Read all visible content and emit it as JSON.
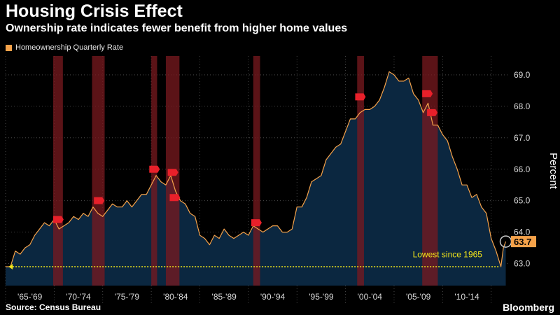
{
  "header": {
    "title": "Housing Crisis Effect",
    "subtitle": "Ownership rate indicates fewer benefit from higher home values"
  },
  "footer": {
    "source": "Source: Census Bureau",
    "brand": "Bloomberg"
  },
  "colors": {
    "line": "#f5a24a",
    "area": "#0b2740",
    "recession": "#7a1a1f",
    "recession_marker": "#e8202a",
    "annotation": "#f2e51a",
    "last_value_bg": "#f5a24a",
    "axis_text": "#d9d9d9"
  },
  "chart_data": {
    "type": "area",
    "title": "Housing Crisis Effect",
    "subtitle": "Ownership rate indicates fewer benefit from higher home values",
    "ylabel": "Percent",
    "xlabel": "",
    "ylim": [
      62.3,
      69.6
    ],
    "xlim": [
      1965.0,
      2016.75
    ],
    "y_ticks": [
      63.0,
      64.0,
      65.0,
      66.0,
      67.0,
      68.0,
      69.0
    ],
    "y_tick_labels": [
      "63.0",
      "64.0",
      "65.0",
      "66.0",
      "67.0",
      "68.0",
      "69.0"
    ],
    "x_tick_labels": [
      "'65-'69",
      "'70-'74",
      "'75-'79",
      "'80-'84",
      "'85-'89",
      "'90-'94",
      "'95-'99",
      "'00-'04",
      "'05-'09",
      "'10-'14"
    ],
    "x_tick_label_years": [
      1967.5,
      1972.5,
      1977.5,
      1982.5,
      1987.5,
      1992.5,
      1997.5,
      2002.5,
      2007.5,
      2012.5
    ],
    "x_dividers": [
      1965,
      1970,
      1975,
      1980,
      1985,
      1990,
      1995,
      2000,
      2005,
      2010,
      2015
    ],
    "legend": {
      "entries": [
        "Homeownership Quarterly Rate"
      ],
      "position": "top-left"
    },
    "grid": true,
    "series": [
      {
        "name": "Homeownership Quarterly Rate",
        "points": [
          [
            1965.0,
            62.9
          ],
          [
            1965.5,
            62.9
          ],
          [
            1966.0,
            63.4
          ],
          [
            1966.5,
            63.3
          ],
          [
            1967.0,
            63.5
          ],
          [
            1967.5,
            63.6
          ],
          [
            1968.0,
            63.9
          ],
          [
            1968.5,
            64.1
          ],
          [
            1969.0,
            64.3
          ],
          [
            1969.5,
            64.2
          ],
          [
            1970.0,
            64.4
          ],
          [
            1970.5,
            64.1
          ],
          [
            1971.0,
            64.2
          ],
          [
            1971.5,
            64.3
          ],
          [
            1972.0,
            64.5
          ],
          [
            1972.5,
            64.4
          ],
          [
            1973.0,
            64.6
          ],
          [
            1973.5,
            64.5
          ],
          [
            1974.0,
            64.8
          ],
          [
            1974.5,
            64.6
          ],
          [
            1975.0,
            64.5
          ],
          [
            1975.5,
            64.7
          ],
          [
            1976.0,
            64.9
          ],
          [
            1976.5,
            64.8
          ],
          [
            1977.0,
            64.8
          ],
          [
            1977.5,
            65.0
          ],
          [
            1978.0,
            64.8
          ],
          [
            1978.5,
            65.0
          ],
          [
            1979.0,
            65.2
          ],
          [
            1979.5,
            65.2
          ],
          [
            1980.0,
            65.5
          ],
          [
            1980.5,
            65.8
          ],
          [
            1981.0,
            65.6
          ],
          [
            1981.5,
            65.5
          ],
          [
            1982.0,
            65.8
          ],
          [
            1982.5,
            65.3
          ],
          [
            1983.0,
            65.0
          ],
          [
            1983.5,
            64.9
          ],
          [
            1984.0,
            64.6
          ],
          [
            1984.5,
            64.5
          ],
          [
            1985.0,
            63.9
          ],
          [
            1985.5,
            63.8
          ],
          [
            1986.0,
            63.6
          ],
          [
            1986.5,
            63.9
          ],
          [
            1987.0,
            63.8
          ],
          [
            1987.5,
            64.1
          ],
          [
            1988.0,
            63.9
          ],
          [
            1988.5,
            63.8
          ],
          [
            1989.0,
            63.9
          ],
          [
            1989.5,
            64.0
          ],
          [
            1990.0,
            63.9
          ],
          [
            1990.5,
            64.2
          ],
          [
            1991.0,
            64.1
          ],
          [
            1991.5,
            64.0
          ],
          [
            1992.0,
            64.1
          ],
          [
            1992.5,
            64.2
          ],
          [
            1993.0,
            64.2
          ],
          [
            1993.5,
            64.0
          ],
          [
            1994.0,
            64.0
          ],
          [
            1994.5,
            64.1
          ],
          [
            1995.0,
            64.8
          ],
          [
            1995.5,
            64.8
          ],
          [
            1996.0,
            65.1
          ],
          [
            1996.5,
            65.6
          ],
          [
            1997.0,
            65.7
          ],
          [
            1997.5,
            65.8
          ],
          [
            1998.0,
            66.3
          ],
          [
            1998.5,
            66.5
          ],
          [
            1999.0,
            66.7
          ],
          [
            1999.5,
            66.8
          ],
          [
            2000.0,
            67.2
          ],
          [
            2000.5,
            67.6
          ],
          [
            2001.0,
            67.6
          ],
          [
            2001.5,
            67.8
          ],
          [
            2002.0,
            67.9
          ],
          [
            2002.5,
            67.9
          ],
          [
            2003.0,
            68.0
          ],
          [
            2003.5,
            68.2
          ],
          [
            2004.0,
            68.6
          ],
          [
            2004.5,
            69.1
          ],
          [
            2005.0,
            69.0
          ],
          [
            2005.5,
            68.8
          ],
          [
            2006.0,
            68.8
          ],
          [
            2006.5,
            68.9
          ],
          [
            2007.0,
            68.4
          ],
          [
            2007.5,
            68.2
          ],
          [
            2008.0,
            67.8
          ],
          [
            2008.5,
            68.1
          ],
          [
            2009.0,
            67.4
          ],
          [
            2009.5,
            67.4
          ],
          [
            2010.0,
            67.1
          ],
          [
            2010.5,
            66.9
          ],
          [
            2011.0,
            66.4
          ],
          [
            2011.5,
            66.0
          ],
          [
            2012.0,
            65.5
          ],
          [
            2012.5,
            65.5
          ],
          [
            2013.0,
            65.1
          ],
          [
            2013.5,
            65.2
          ],
          [
            2014.0,
            64.8
          ],
          [
            2014.5,
            64.6
          ],
          [
            2015.0,
            63.8
          ],
          [
            2015.5,
            63.4
          ],
          [
            2016.0,
            62.9
          ],
          [
            2016.25,
            63.5
          ],
          [
            2016.5,
            63.7
          ]
        ]
      }
    ],
    "recessions": [
      [
        1969.9,
        1970.9
      ],
      [
        1973.9,
        1975.2
      ],
      [
        1980.0,
        1980.6
      ],
      [
        1981.5,
        1982.9
      ],
      [
        1990.5,
        1991.2
      ],
      [
        2001.2,
        2001.9
      ],
      [
        2007.9,
        2009.5
      ]
    ],
    "recession_markers": [
      {
        "x": 1970.4,
        "y": 64.4
      },
      {
        "x": 1974.6,
        "y": 65.0
      },
      {
        "x": 1980.3,
        "y": 66.0
      },
      {
        "x": 1982.2,
        "y": 65.9
      },
      {
        "x": 1982.4,
        "y": 65.1
      },
      {
        "x": 1990.8,
        "y": 64.3
      },
      {
        "x": 2001.5,
        "y": 68.3
      },
      {
        "x": 2008.4,
        "y": 68.4
      },
      {
        "x": 2008.9,
        "y": 67.8
      }
    ],
    "last_value": {
      "x": 2016.5,
      "y": 63.7,
      "label": "63.7"
    },
    "annotations": [
      {
        "text": "Lowest since 1965",
        "y": 62.9,
        "arrow_from_x": 2015.75,
        "arrow_to_x": 1965.3,
        "label_x": 2010.5,
        "label_y": 63.2
      }
    ]
  }
}
